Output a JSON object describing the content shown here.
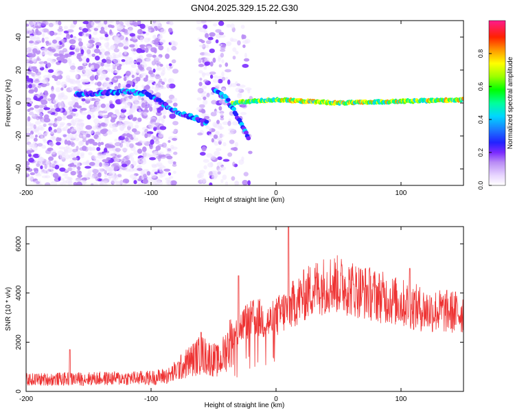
{
  "title": "GN04.2025.329.15.22.G30",
  "chart_data": [
    {
      "type": "heatmap",
      "title": "GN04.2025.329.15.22.G30",
      "xlabel": "Height of straight line (km)",
      "ylabel": "Frequency (Hz)",
      "xlim": [
        -200,
        150
      ],
      "ylim": [
        -50,
        50
      ],
      "xticks": [
        "-200",
        "-100",
        "0",
        "100"
      ],
      "yticks": [
        "-40",
        "-20",
        "0",
        "20",
        "40"
      ],
      "colorbar": {
        "label": "Normalized spectral amplitude",
        "range": [
          0,
          1
        ],
        "ticks": [
          "0.0",
          "0.2",
          "0.4",
          "0.6",
          "0.8"
        ]
      },
      "features": [
        {
          "name": "noise-region",
          "x_range": [
            -200,
            -20
          ],
          "y_range": [
            -50,
            50
          ]
        },
        {
          "name": "noise-gap",
          "x_range": [
            -80,
            -62
          ]
        },
        {
          "name": "trace-1",
          "points": [
            [
              -160,
              5
            ],
            [
              -120,
              7
            ],
            [
              -105,
              6
            ],
            [
              -95,
              2
            ],
            [
              -85,
              -3
            ],
            [
              -75,
              -7
            ],
            [
              -65,
              -9
            ],
            [
              -55,
              -12
            ]
          ]
        },
        {
          "name": "trace-2",
          "points": [
            [
              -50,
              8
            ],
            [
              -40,
              3
            ],
            [
              -33,
              -5
            ],
            [
              -28,
              -13
            ],
            [
              -22,
              -21
            ]
          ]
        },
        {
          "name": "main-line",
          "points": [
            [
              -35,
              0
            ],
            [
              -20,
              1
            ],
            [
              0,
              2
            ],
            [
              50,
              0
            ],
            [
              100,
              1
            ],
            [
              150,
              2
            ]
          ]
        }
      ]
    },
    {
      "type": "line",
      "xlabel": "Height of straight line (km)",
      "ylabel": "SNR (10 * v/v)",
      "xlim": [
        -200,
        150
      ],
      "ylim": [
        0,
        6700
      ],
      "xticks": [
        "-200",
        "-100",
        "0",
        "100"
      ],
      "yticks": [
        "0",
        "2000",
        "4000",
        "6000"
      ],
      "series": [
        {
          "name": "SNR",
          "color": "#ee3333",
          "envelope": [
            [
              -200,
              480
            ],
            [
              -100,
              550
            ],
            [
              -85,
              650
            ],
            [
              -70,
              1200
            ],
            [
              -60,
              1500
            ],
            [
              -45,
              1200
            ],
            [
              -35,
              2200
            ],
            [
              -25,
              2800
            ],
            [
              -15,
              3000
            ],
            [
              -5,
              2800
            ],
            [
              5,
              3200
            ],
            [
              15,
              3600
            ],
            [
              30,
              4200
            ],
            [
              45,
              4400
            ],
            [
              60,
              4200
            ],
            [
              80,
              3900
            ],
            [
              100,
              3600
            ],
            [
              120,
              3300
            ],
            [
              150,
              3200
            ]
          ],
          "spikes": [
            [
              -165,
              1700
            ],
            [
              -60,
              2400
            ],
            [
              -30,
              4700
            ],
            [
              10,
              6700
            ],
            [
              107,
              5000
            ]
          ]
        }
      ]
    }
  ]
}
